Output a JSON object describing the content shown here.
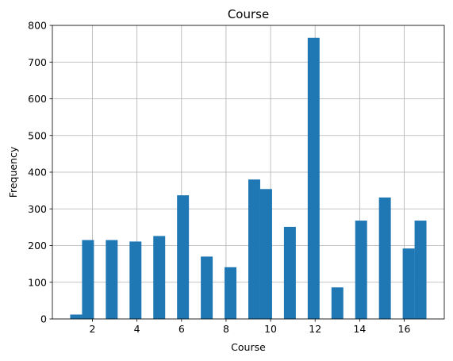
{
  "chart_data": {
    "type": "bar",
    "title": "Course",
    "xlabel": "Course",
    "ylabel": "Frequency",
    "xlim": [
      0.2,
      17.8
    ],
    "ylim": [
      0,
      800
    ],
    "x_ticks": [
      "2",
      "4",
      "6",
      "8",
      "10",
      "12",
      "14",
      "16"
    ],
    "y_ticks": [
      "0",
      "100",
      "200",
      "300",
      "400",
      "500",
      "600",
      "700",
      "800"
    ],
    "grid": true,
    "color": "#1f77b4",
    "bins": [
      {
        "x0": 1.0,
        "x1": 1.5333,
        "count": 12
      },
      {
        "x0": 1.5333,
        "x1": 2.0667,
        "count": 215
      },
      {
        "x0": 2.6,
        "x1": 3.1333,
        "count": 215
      },
      {
        "x0": 3.6667,
        "x1": 4.2,
        "count": 211
      },
      {
        "x0": 4.7333,
        "x1": 5.2667,
        "count": 226
      },
      {
        "x0": 5.8,
        "x1": 6.3333,
        "count": 337
      },
      {
        "x0": 6.8667,
        "x1": 7.4,
        "count": 170
      },
      {
        "x0": 7.9333,
        "x1": 8.4667,
        "count": 141
      },
      {
        "x0": 9.0,
        "x1": 9.5333,
        "count": 380
      },
      {
        "x0": 9.5333,
        "x1": 10.0667,
        "count": 354
      },
      {
        "x0": 10.6,
        "x1": 11.1333,
        "count": 251
      },
      {
        "x0": 11.6667,
        "x1": 12.2,
        "count": 766
      },
      {
        "x0": 12.7333,
        "x1": 13.2667,
        "count": 86
      },
      {
        "x0": 13.8,
        "x1": 14.3333,
        "count": 268
      },
      {
        "x0": 14.8667,
        "x1": 15.4,
        "count": 331
      },
      {
        "x0": 15.9333,
        "x1": 16.4667,
        "count": 192
      },
      {
        "x0": 16.4667,
        "x1": 17.0,
        "count": 268
      }
    ]
  }
}
